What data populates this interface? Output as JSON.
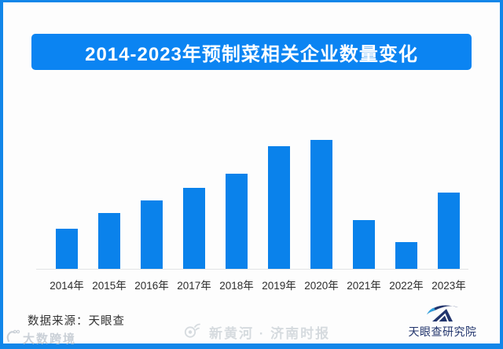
{
  "banner": {
    "title": "2014-2023年预制菜相关企业数量变化"
  },
  "chart_data": {
    "type": "bar",
    "title": "2014-2023年预制菜相关企业数量变化",
    "categories": [
      "2014年",
      "2015年",
      "2016年",
      "2017年",
      "2018年",
      "2019年",
      "2020年",
      "2021年",
      "2022年",
      "2023年"
    ],
    "values": [
      31,
      43,
      53,
      63,
      74,
      95,
      100,
      38,
      21,
      59
    ],
    "xlabel": "",
    "ylabel": "",
    "ylim": [
      0,
      100
    ],
    "grid": false,
    "legend": false,
    "value_scale_note": "chart shows no numeric axis or data labels; values are estimated bar heights relative to tallest bar (2020 = 100)"
  },
  "footer": {
    "source": "数据来源：天眼查",
    "brand": "天眼查研究院"
  },
  "watermarks": {
    "left_text": "大数跨境",
    "center_text": "新黄河 · 济南时报"
  },
  "icons": {
    "left_watermark": "dashukuajing-icon",
    "center_watermark": "weibo-eye-icon",
    "brand": "tianyancha-eye-icon"
  },
  "colors": {
    "bar": "#0a82eb",
    "banner": "#0b84f2",
    "frame": "#1286e9",
    "brand_navy": "#22356d",
    "brand_light_blue": "#2f9fdc",
    "axis_line": "#e2e4e6"
  }
}
